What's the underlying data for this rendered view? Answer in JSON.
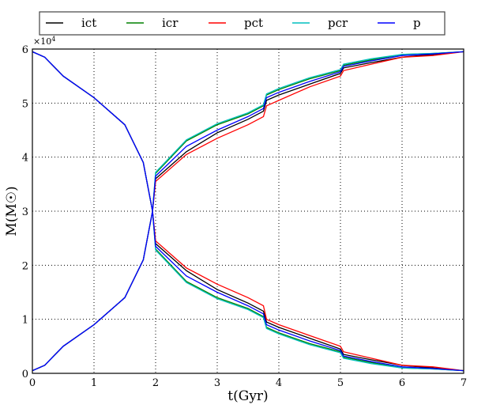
{
  "chart_data": {
    "type": "line",
    "title": "",
    "xlabel": "t(Gyr)",
    "ylabel": "M(M☉)",
    "y_multiplier": "×10^4",
    "xlim": [
      0,
      7
    ],
    "ylim": [
      0,
      6
    ],
    "xticks": [
      "0",
      "1",
      "2",
      "3",
      "4",
      "5",
      "6",
      "7"
    ],
    "yticks": [
      "0",
      "1",
      "2",
      "3",
      "4",
      "5",
      "6"
    ],
    "grid": true,
    "legend_position": "top, outside, horizontal",
    "legend": [
      {
        "name": "ict",
        "color": "#000000"
      },
      {
        "name": "icr",
        "color": "#008000"
      },
      {
        "name": "pct",
        "color": "#ff0000"
      },
      {
        "name": "pcr",
        "color": "#00bfbf"
      },
      {
        "name": "p",
        "color": "#0000ff"
      }
    ],
    "shared_decay_curve": {
      "note": "All series overlap for t < ~2 Gyr; one component decreases from 6 to ~3, other rises from ~0.05 to ~3 (units 10^4)",
      "x": [
        0,
        0.2,
        0.5,
        1.0,
        1.5,
        1.8,
        1.95
      ],
      "upper": [
        5.95,
        5.85,
        5.5,
        5.1,
        4.6,
        3.9,
        3.0
      ],
      "lower": [
        0.05,
        0.15,
        0.5,
        0.9,
        1.4,
        2.1,
        3.0
      ]
    },
    "series": [
      {
        "name": "ict",
        "x": [
          2.0,
          2.5,
          3.0,
          3.5,
          3.75,
          3.8,
          4.0,
          4.5,
          5.0,
          5.05,
          5.5,
          6.0,
          6.5,
          7.0
        ],
        "upper": [
          3.6,
          4.1,
          4.45,
          4.7,
          4.85,
          5.05,
          5.15,
          5.35,
          5.55,
          5.65,
          5.75,
          5.85,
          5.9,
          5.95
        ],
        "lower": [
          2.4,
          1.9,
          1.55,
          1.3,
          1.15,
          0.95,
          0.85,
          0.65,
          0.45,
          0.35,
          0.25,
          0.15,
          0.1,
          0.05
        ]
      },
      {
        "name": "icr",
        "x": [
          2.0,
          2.5,
          3.0,
          3.5,
          3.75,
          3.8,
          4.0,
          4.5,
          5.0,
          5.05,
          5.5,
          6.0,
          6.5,
          7.0
        ],
        "upper": [
          3.7,
          4.3,
          4.6,
          4.8,
          4.95,
          5.15,
          5.25,
          5.45,
          5.6,
          5.7,
          5.8,
          5.9,
          5.92,
          5.95
        ],
        "lower": [
          2.3,
          1.7,
          1.4,
          1.2,
          1.05,
          0.85,
          0.75,
          0.55,
          0.4,
          0.3,
          0.2,
          0.1,
          0.08,
          0.05
        ]
      },
      {
        "name": "pct",
        "x": [
          2.0,
          2.5,
          3.0,
          3.5,
          3.75,
          3.8,
          4.0,
          4.5,
          5.0,
          5.05,
          5.5,
          6.0,
          6.5,
          7.0
        ],
        "upper": [
          3.55,
          4.05,
          4.35,
          4.6,
          4.75,
          4.95,
          5.05,
          5.3,
          5.5,
          5.6,
          5.72,
          5.85,
          5.88,
          5.95
        ],
        "lower": [
          2.45,
          1.95,
          1.65,
          1.4,
          1.25,
          1.0,
          0.9,
          0.7,
          0.5,
          0.4,
          0.28,
          0.15,
          0.12,
          0.05
        ]
      },
      {
        "name": "pcr",
        "x": [
          2.0,
          2.5,
          3.0,
          3.5,
          3.75,
          3.8,
          4.0,
          4.5,
          5.0,
          5.05,
          5.5,
          6.0,
          6.5,
          7.0
        ],
        "upper": [
          3.72,
          4.32,
          4.62,
          4.82,
          4.97,
          5.17,
          5.27,
          5.47,
          5.62,
          5.72,
          5.82,
          5.9,
          5.92,
          5.95
        ],
        "lower": [
          2.28,
          1.68,
          1.38,
          1.18,
          1.03,
          0.83,
          0.73,
          0.53,
          0.38,
          0.28,
          0.18,
          0.1,
          0.08,
          0.05
        ]
      },
      {
        "name": "p",
        "x": [
          2.0,
          2.5,
          3.0,
          3.5,
          3.75,
          3.8,
          4.0,
          4.5,
          5.0,
          5.05,
          5.5,
          6.0,
          6.5,
          7.0
        ],
        "upper": [
          3.65,
          4.2,
          4.5,
          4.75,
          4.9,
          5.1,
          5.2,
          5.4,
          5.58,
          5.68,
          5.78,
          5.88,
          5.91,
          5.95
        ],
        "lower": [
          2.35,
          1.8,
          1.5,
          1.25,
          1.1,
          0.9,
          0.8,
          0.6,
          0.42,
          0.32,
          0.22,
          0.12,
          0.09,
          0.05
        ]
      }
    ]
  }
}
